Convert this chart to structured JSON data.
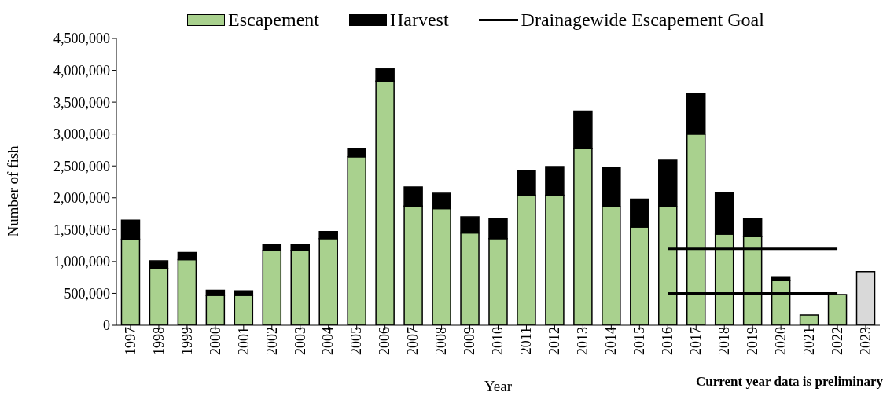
{
  "chart_data": {
    "type": "bar",
    "stacked": true,
    "xlabel": "Year",
    "ylabel": "Number of fish",
    "categories": [
      "1997",
      "1998",
      "1999",
      "2000",
      "2001",
      "2002",
      "2003",
      "2004",
      "2005",
      "2006",
      "2007",
      "2008",
      "2009",
      "2010",
      "2011",
      "2012",
      "2013",
      "2014",
      "2015",
      "2016",
      "2017",
      "2018",
      "2019",
      "2020",
      "2021",
      "2022",
      "2023"
    ],
    "series": [
      {
        "name": "Escapement",
        "color": "#a9d18e",
        "values": [
          1350000,
          890000,
          1030000,
          470000,
          470000,
          1170000,
          1170000,
          1360000,
          2640000,
          3830000,
          1870000,
          1830000,
          1450000,
          1360000,
          2040000,
          2040000,
          2770000,
          1860000,
          1540000,
          1860000,
          3000000,
          1430000,
          1390000,
          700000,
          160000,
          480000,
          null
        ]
      },
      {
        "name": "Harvest",
        "color": "#000000",
        "values": [
          300000,
          120000,
          110000,
          80000,
          70000,
          100000,
          90000,
          110000,
          130000,
          200000,
          300000,
          240000,
          250000,
          310000,
          380000,
          450000,
          590000,
          620000,
          440000,
          730000,
          640000,
          650000,
          290000,
          60000,
          null,
          null,
          null
        ]
      },
      {
        "color": "#d9d9d9",
        "values": [
          null,
          null,
          null,
          null,
          null,
          null,
          null,
          null,
          null,
          null,
          null,
          null,
          null,
          null,
          null,
          null,
          null,
          null,
          null,
          null,
          null,
          null,
          null,
          null,
          null,
          null,
          840000
        ]
      },
      {
        "name": "Drainagewide Escapement Goal",
        "type": "line",
        "color": "#000000",
        "values": [
          null,
          null,
          null,
          null,
          null,
          null,
          null,
          null,
          null,
          null,
          null,
          null,
          null,
          null,
          null,
          null,
          null,
          null,
          null,
          1200000,
          1200000,
          1200000,
          1200000,
          1200000,
          1200000,
          1200000,
          null
        ]
      },
      {
        "type": "line",
        "color": "#000000",
        "values": [
          null,
          null,
          null,
          null,
          null,
          null,
          null,
          null,
          null,
          null,
          null,
          null,
          null,
          null,
          null,
          null,
          null,
          null,
          null,
          500000,
          500000,
          500000,
          500000,
          500000,
          500000,
          500000,
          null
        ]
      }
    ],
    "ylim": [
      0,
      4500000
    ],
    "yticks": [
      0,
      {
        "value": 500000,
        "label": "500,000"
      },
      {
        "value": 1000000,
        "label": "1,000,000"
      },
      {
        "value": 1500000,
        "label": "1,500,000"
      },
      {
        "value": 2000000,
        "label": "2,000,000"
      },
      {
        "value": 2500000,
        "label": "2,500,000"
      },
      {
        "value": 3000000,
        "label": "3,000,000"
      },
      {
        "value": 3500000,
        "label": "3,500,000"
      },
      {
        "value": 4000000,
        "label": "4,000,000"
      },
      {
        "value": 4500000,
        "label": "4,500,000"
      }
    ],
    "legend": "top",
    "marker": "none",
    "line_style": "solid",
    "annotations": [
      "Current year data is preliminary"
    ]
  }
}
